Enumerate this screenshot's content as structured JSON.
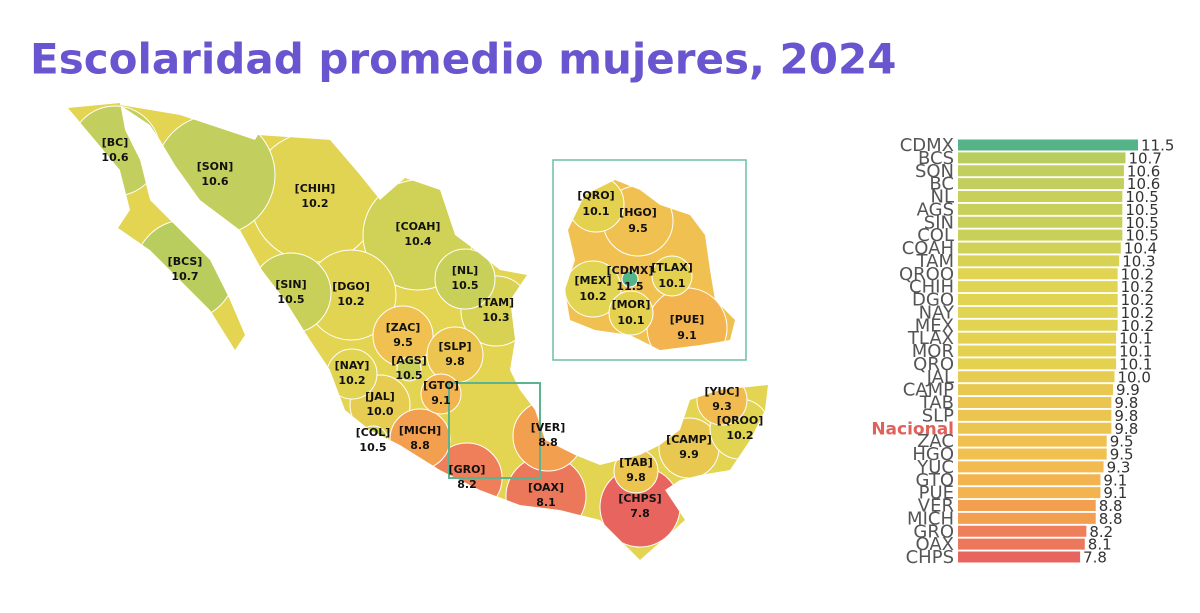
{
  "chart_data": [
    {
      "type": "choropleth",
      "title": "Escolaridad promedio mujeres, 2024",
      "categories": [
        "[BC]",
        "[SON]",
        "[CHIH]",
        "[BCS]",
        "[COAH]",
        "[SIN]",
        "[DGO]",
        "[NL]",
        "[TAM]",
        "[ZAC]",
        "[SLP]",
        "[NAY]",
        "[AGS]",
        "[GTO]",
        "[JAL]",
        "[COL]",
        "[MICH]",
        "[VER]",
        "[GRO]",
        "[OAX]",
        "[TAB]",
        "[CHPS]",
        "[CAMP]",
        "[YUC]",
        "[QROO]"
      ],
      "values": [
        10.6,
        10.6,
        10.2,
        10.7,
        10.4,
        10.5,
        10.2,
        10.5,
        10.3,
        9.5,
        9.8,
        10.2,
        10.5,
        9.1,
        10.0,
        10.5,
        8.8,
        8.8,
        8.2,
        8.1,
        9.8,
        7.8,
        9.9,
        9.3,
        10.2
      ],
      "value_labels": [
        "10.6",
        "10.6",
        "10.2",
        "10.7",
        "10.4",
        "10.5",
        "10.2",
        "10.5",
        "10.3",
        "9.5",
        "9.8",
        "10.2",
        "10.5",
        "9.1",
        "10.0",
        "10.5",
        "8.8",
        "8.8",
        "8.2",
        "8.1",
        "9.8",
        "7.8",
        "9.9",
        "9.3",
        "10.2"
      ],
      "colors": [
        "#c2ce5d",
        "#c2ce5d",
        "#e0d452",
        "#b9cc5e",
        "#d0d157",
        "#c9d05a",
        "#e0d452",
        "#c9d05a",
        "#d8d254",
        "#f0c150",
        "#ecc550",
        "#e0d452",
        "#c9d05a",
        "#f3b450",
        "#e6cc50",
        "#c9d05a",
        "#f2a050",
        "#f2a050",
        "#ee7f5a",
        "#ec785c",
        "#ecc550",
        "#e8655f",
        "#e8c850",
        "#f2bb50",
        "#e0d452"
      ]
    },
    {
      "type": "choropleth",
      "categories": [
        "[QRO]",
        "[HGO]",
        "[MEX]",
        "[CDMX]",
        "[TLAX]",
        "[MOR]",
        "[PUE]"
      ],
      "values": [
        10.1,
        9.5,
        10.2,
        11.5,
        10.1,
        10.1,
        9.1
      ],
      "value_labels": [
        "10.1",
        "9.5",
        "10.2",
        "11.5",
        "10.1",
        "10.1",
        "9.1"
      ],
      "colors": [
        "#e4d150",
        "#f0c150",
        "#e0d452",
        "#55b487",
        "#e4d150",
        "#e4d150",
        "#f3b450"
      ]
    },
    {
      "type": "bar",
      "orientation": "horizontal",
      "categories": [
        "CDMX",
        "BCS",
        "SON",
        "BC",
        "NL",
        "AGS",
        "SIN",
        "COL",
        "COAH",
        "TAM",
        "QROO",
        "CHIH",
        "DGO",
        "NAY",
        "MEX",
        "TLAX",
        "MOR",
        "QRO",
        "JAL",
        "CAMP",
        "TAB",
        "SLP",
        "Nacional",
        "ZAC",
        "HGO",
        "YUC",
        "GTO",
        "PUE",
        "VER",
        "MICH",
        "GRO",
        "OAX",
        "CHPS"
      ],
      "values": [
        11.5,
        10.7,
        10.6,
        10.6,
        10.5,
        10.5,
        10.5,
        10.5,
        10.4,
        10.3,
        10.2,
        10.2,
        10.2,
        10.2,
        10.2,
        10.1,
        10.1,
        10.1,
        10.0,
        9.9,
        9.8,
        9.8,
        9.8,
        9.5,
        9.5,
        9.3,
        9.1,
        9.1,
        8.8,
        8.8,
        8.2,
        8.1,
        7.8
      ],
      "value_labels": [
        "11.5",
        "10.7",
        "10.6",
        "10.6",
        "10.5",
        "10.5",
        "10.5",
        "10.5",
        "10.4",
        "10.3",
        "10.2",
        "10.2",
        "10.2",
        "10.2",
        "10.2",
        "10.1",
        "10.1",
        "10.1",
        "10.0",
        "9.9",
        "9.8",
        "9.8",
        "9.8",
        "9.5",
        "9.5",
        "9.3",
        "9.1",
        "9.1",
        "8.8",
        "8.8",
        "8.2",
        "8.1",
        "7.8"
      ],
      "colors": [
        "#55b487",
        "#b9cc5e",
        "#c2ce5d",
        "#c2ce5d",
        "#c9d05a",
        "#c9d05a",
        "#c9d05a",
        "#c9d05a",
        "#d0d157",
        "#d8d254",
        "#e0d452",
        "#e0d452",
        "#e0d452",
        "#e0d452",
        "#e0d452",
        "#e4d150",
        "#e4d150",
        "#e4d150",
        "#e6cc50",
        "#e8c850",
        "#ecc550",
        "#ecc550",
        "#ecc550",
        "#f0c150",
        "#f0c150",
        "#f2bb50",
        "#f3b450",
        "#f3b450",
        "#f2a050",
        "#f2a050",
        "#ee7f5a",
        "#ec785c",
        "#e8655f"
      ],
      "highlight_category": "Nacional",
      "highlight_color": "#e0605a"
    }
  ]
}
